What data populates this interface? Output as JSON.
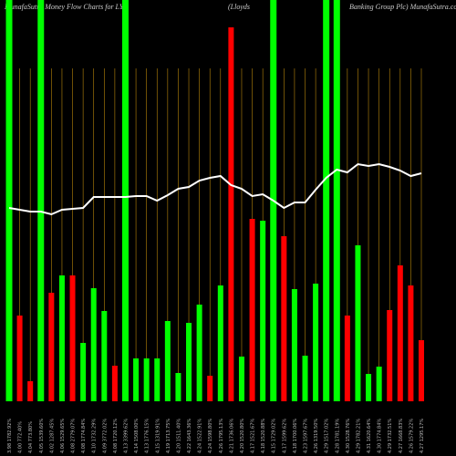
{
  "chart_data": {
    "type": "bar",
    "title": "MunafaSutra  Money Flow  Charts for LYG",
    "subtitle": "(Lloyds",
    "subtitle2": "Banking Group Plc) MunafaSutra.com",
    "categories": [
      "3.98 1782.92%",
      "4.00 772.40%",
      "4.04 773.80%",
      "4.05 1539.60%",
      "4.02 1287.45%",
      "4.06 1529.65%",
      "4.08 2779.07%",
      "4.08 1774.84%",
      "4.10 1732.29%",
      "4.09 3772.02%",
      "4.08 1720.12%",
      "4.13 3399.62%",
      "4.14 1508.00%",
      "4.13 1776.15%",
      "4.15 1319.91%",
      "4.19 1713.75%",
      "4.20 1511.40%",
      "4.22 1643.36%",
      "4.24 1522.91%",
      "4.24 1598.80%",
      "4.26 1795.13%",
      "4.21 1736.06%",
      "4.20 1520.80%",
      "4.17 1521.67%",
      "4.18 1520.88%",
      "4.15 1729.02%",
      "4.17 1599.62%",
      "4.18 1700.06%",
      "4.23 1597.67%",
      "4.26 1319.50%",
      "4.29 1517.02%",
      "4.28 1781.19%",
      "4.30 1528.76%",
      "4.29 1782.21%",
      "4.31 1620.64%",
      "4.30 1774.84%",
      "4.29 1732.51%",
      "4.27 1668.83%",
      "4.26 1579.22%",
      "4.27 1295.17%"
    ],
    "values": [
      440,
      94,
      22,
      440,
      119,
      138,
      138,
      64,
      124,
      99,
      39,
      440,
      47,
      47,
      47,
      88,
      31,
      86,
      106,
      28,
      127,
      410,
      49,
      200,
      198,
      440,
      181,
      123,
      50,
      129,
      440,
      440,
      94,
      171,
      30,
      38,
      100,
      149,
      127,
      67
    ],
    "colors": [
      "#00ff00",
      "#ff0000",
      "#ff0000",
      "#00ff00",
      "#ff0000",
      "#00ff00",
      "#ff0000",
      "#00ff00",
      "#00ff00",
      "#00ff00",
      "#ff0000",
      "#00ff00",
      "#00ff00",
      "#00ff00",
      "#00ff00",
      "#00ff00",
      "#00ff00",
      "#00ff00",
      "#00ff00",
      "#ff0000",
      "#00ff00",
      "#ff0000",
      "#00ff00",
      "#ff0000",
      "#00ff00",
      "#00ff00",
      "#ff0000",
      "#00ff00",
      "#00ff00",
      "#00ff00",
      "#00ff00",
      "#00ff00",
      "#ff0000",
      "#00ff00",
      "#00ff00",
      "#00ff00",
      "#ff0000",
      "#ff0000",
      "#ff0000",
      "#ff0000"
    ],
    "line": {
      "color": "#ffffff",
      "values": [
        212,
        210,
        208,
        208,
        205,
        210,
        211,
        212,
        224,
        224,
        224,
        224,
        225,
        225,
        220,
        226,
        233,
        235,
        242,
        245,
        247,
        237,
        233,
        225,
        227,
        220,
        212,
        218,
        218,
        232,
        245,
        254,
        251,
        260,
        258,
        260,
        257,
        253,
        247,
        250
      ]
    },
    "grid_color": "#b8860b",
    "ylim": [
      0,
      440
    ]
  }
}
